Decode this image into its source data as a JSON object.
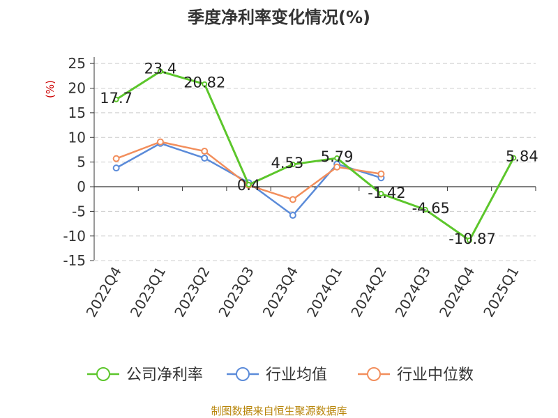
{
  "chart_data": {
    "type": "line",
    "title": "季度净利率变化情况(%)",
    "ylabel": "(%)",
    "xlabel": "",
    "ylim": [
      -15,
      25
    ],
    "yticks": [
      25,
      20,
      15,
      10,
      5,
      0,
      -5,
      -10,
      -15
    ],
    "grid": true,
    "legend_position": "bottom",
    "categories": [
      "2022Q4",
      "2023Q1",
      "2023Q2",
      "2023Q3",
      "2023Q4",
      "2024Q1",
      "2024Q2",
      "2024Q3",
      "2024Q4",
      "2025Q1"
    ],
    "series": [
      {
        "name": "公司净利率",
        "color": "#5cc62b",
        "values": [
          17.7,
          23.4,
          20.82,
          0.4,
          4.53,
          5.79,
          -1.42,
          -4.65,
          -10.87,
          5.84
        ],
        "labels": [
          "17.7",
          "23.4",
          "20.82",
          "0.4",
          "4.53",
          "5.79",
          "-1.42",
          "-4.65",
          "-10.87",
          "5.84"
        ],
        "show_labels": true
      },
      {
        "name": "行业均值",
        "color": "#5b8bd9",
        "values": [
          3.8,
          8.8,
          5.8,
          0.8,
          -5.8,
          4.6,
          1.8,
          null,
          null,
          null
        ],
        "show_labels": false
      },
      {
        "name": "行业中位数",
        "color": "#f28e5c",
        "values": [
          5.7,
          9.1,
          7.2,
          0.3,
          -2.6,
          4.0,
          2.6,
          null,
          null,
          null
        ],
        "show_labels": false
      }
    ],
    "source": "制图数据来自恒生聚源数据库"
  }
}
